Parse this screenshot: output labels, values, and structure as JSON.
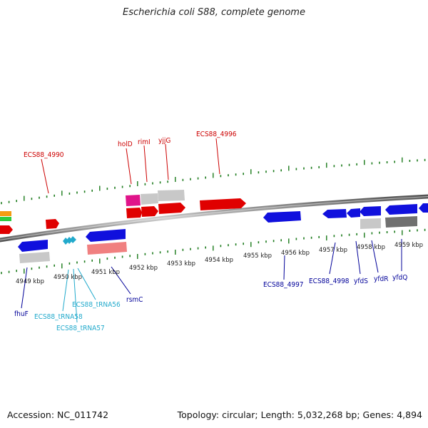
{
  "title": "Escherichia coli S88, complete genome",
  "footer": {
    "accession": "Accession: NC_011742",
    "summary": "Topology: circular; Length: 5,032,268 bp; Genes: 4,894"
  },
  "colors": {
    "forward_label": "#cc0000",
    "reverse_label": "#000099",
    "trna_label": "#22aacc",
    "tick": "#1a7a1a"
  },
  "scale_labels": [
    "4949 kbp",
    "4950 kbp",
    "4951 kbp",
    "4952 kbp",
    "4953 kbp",
    "4954 kbp",
    "4955 kbp",
    "4956 kbp",
    "4957 kbp",
    "4958 kbp",
    "4959 kbp"
  ],
  "forward_gene_labels": [
    "ECS88_4990",
    "holD",
    "rimI",
    "yjjG",
    "ECS88_4996"
  ],
  "reverse_gene_labels": [
    "fhuF",
    "rsmC",
    "ECS88_4997",
    "ECS88_4998",
    "yfdS",
    "yfdR",
    "yfdQ"
  ],
  "trna_labels": [
    "ECS88_tRNA58",
    "ECS88_tRNA57",
    "ECS88_tRNA56"
  ]
}
